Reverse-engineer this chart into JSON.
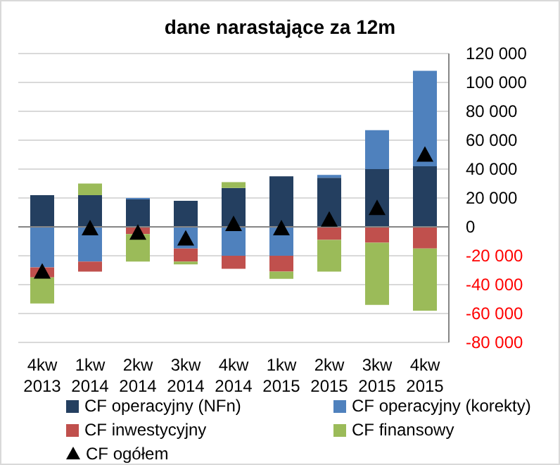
{
  "chart_data": {
    "type": "bar",
    "title": "dane narastające za 12m",
    "stacked": true,
    "categories": [
      "4kw 2013",
      "1kw 2014",
      "2kw 2014",
      "3kw 2014",
      "4kw 2014",
      "1kw 2015",
      "2kw 2015",
      "3kw 2015",
      "4kw 2015"
    ],
    "series": [
      {
        "name": "CF operacyjny (NFn)",
        "color": "#243f60",
        "values": [
          22000,
          22000,
          19000,
          18000,
          27000,
          35000,
          34000,
          40000,
          42000
        ]
      },
      {
        "name": "CF operacyjny (korekty)",
        "color": "#4f81bd",
        "values": [
          -28000,
          -24000,
          1000,
          -15000,
          -20000,
          -20000,
          2000,
          27000,
          66000
        ]
      },
      {
        "name": "CF inwestycyjny",
        "color": "#c0504d",
        "values": [
          -7000,
          -7000,
          -5000,
          -9000,
          -9000,
          -11000,
          -9000,
          -11000,
          -15000
        ]
      },
      {
        "name": "CF finansowy",
        "color": "#9bbb59",
        "values": [
          -18000,
          8000,
          -19000,
          -2000,
          4000,
          -5000,
          -22000,
          -43000,
          -43000
        ]
      },
      {
        "name": "CF ogółem",
        "type": "scatter",
        "color": "#000000",
        "marker": "triangle",
        "values": [
          -31000,
          -1000,
          -4000,
          -8000,
          2000,
          -1000,
          5000,
          13000,
          50000
        ]
      }
    ],
    "ylim": [
      -80000,
      120000
    ],
    "yticks": [
      {
        "value": -80000,
        "label": "-80 000"
      },
      {
        "value": -60000,
        "label": "-60 000"
      },
      {
        "value": -40000,
        "label": "-40 000"
      },
      {
        "value": -20000,
        "label": "-20 000"
      },
      0,
      {
        "value": 20000,
        "label": "20 000"
      },
      {
        "value": 40000,
        "label": "40 000"
      },
      {
        "value": 60000,
        "label": "60 000"
      },
      {
        "value": 80000,
        "label": "80 000"
      },
      {
        "value": 100000,
        "label": "100 000"
      },
      {
        "value": 120000,
        "label": "120 000"
      }
    ],
    "grid": "y",
    "legend": "bottom"
  }
}
